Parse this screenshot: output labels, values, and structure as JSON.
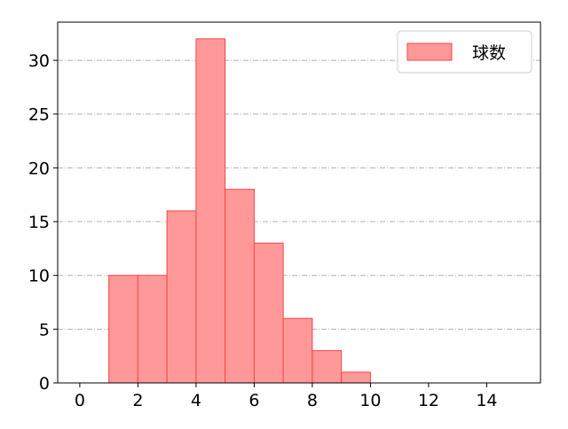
{
  "chart_data": {
    "type": "bar",
    "histogram": true,
    "bins": [
      [
        1,
        2
      ],
      [
        2,
        3
      ],
      [
        3,
        4
      ],
      [
        4,
        5
      ],
      [
        5,
        6
      ],
      [
        6,
        7
      ],
      [
        7,
        8
      ],
      [
        8,
        9
      ],
      [
        9,
        10
      ]
    ],
    "series": [
      {
        "name": "球数",
        "values": [
          10,
          10,
          16,
          32,
          18,
          13,
          6,
          3,
          1
        ]
      }
    ],
    "xlim": [
      -0.76,
      15.85
    ],
    "ylim": [
      0,
      33.55
    ],
    "xticks": [
      0,
      2,
      4,
      6,
      8,
      10,
      12,
      14
    ],
    "yticks": [
      0,
      5,
      10,
      15,
      20,
      25,
      30
    ],
    "grid": "y-dashdot",
    "legend": "top-right",
    "colors": {
      "fill": "#ff9999",
      "edge": "#ff4444",
      "grid": "#b0b0b0"
    }
  }
}
